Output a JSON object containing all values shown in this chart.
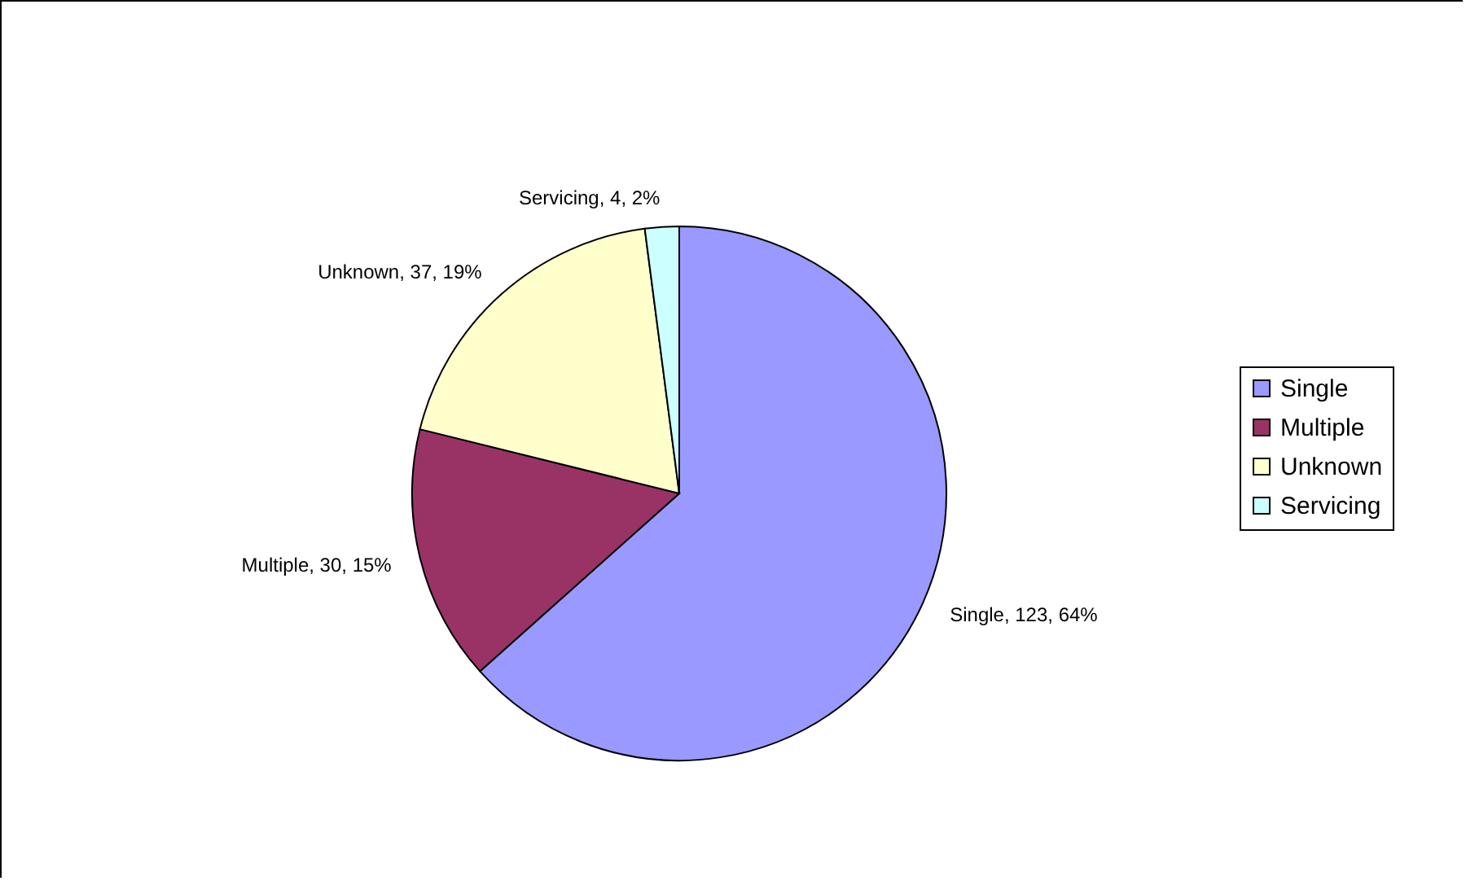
{
  "chart_data": {
    "type": "pie",
    "categories": [
      "Single",
      "Multiple",
      "Unknown",
      "Servicing"
    ],
    "values": [
      123,
      30,
      37,
      4
    ],
    "colors": [
      "#9999ff",
      "#993366",
      "#ffffcc",
      "#ccffff"
    ],
    "value_labels": [
      "Single, 123, 64%",
      "Multiple, 30, 15%",
      "Unknown, 37, 19%",
      "Servicing, 4, 2%"
    ],
    "legend": "right"
  }
}
